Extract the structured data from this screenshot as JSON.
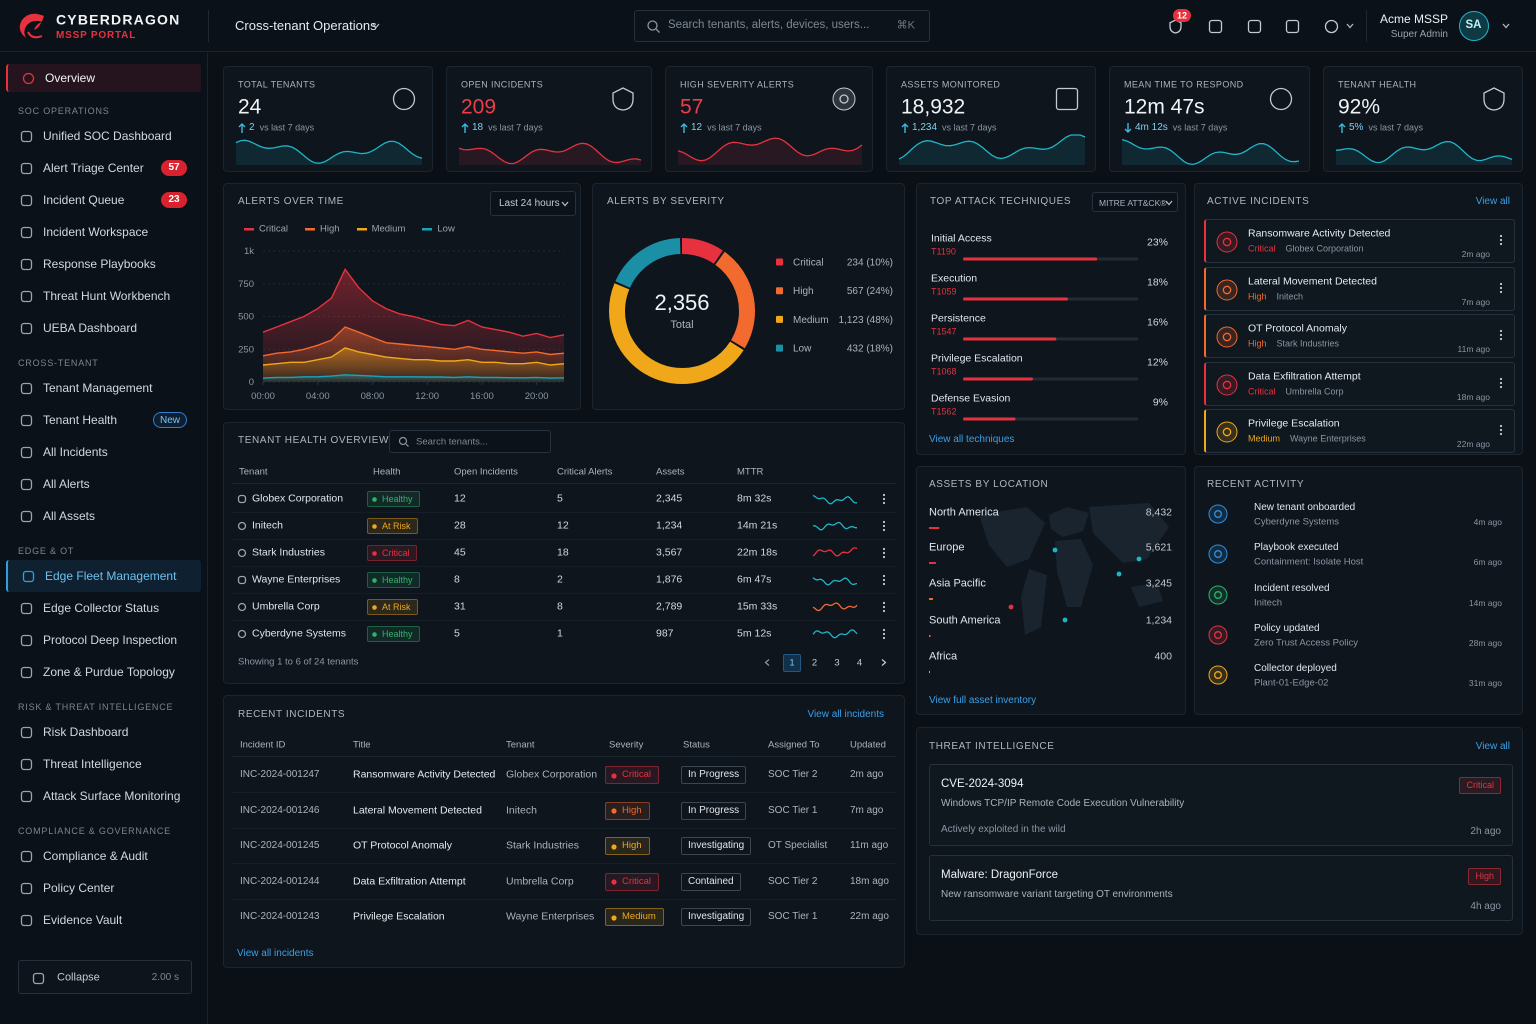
{
  "brand": {
    "name": "CYBERDRAGON",
    "tagline": "MSSP PORTAL"
  },
  "topbar": {
    "context": "Cross-tenant Operations",
    "search_placeholder": "Search tenants, alerts, devices, users...",
    "shortcut": "⌘K",
    "notifications": "12",
    "user": "Acme MSSP",
    "role": "Super Admin",
    "initials": "SA"
  },
  "sidebar": {
    "home": {
      "label": "Overview",
      "active": true,
      "color": "#e5323e"
    },
    "sections": [
      {
        "title": "SOC OPERATIONS",
        "items": [
          {
            "label": "Unified SOC Dashboard"
          },
          {
            "label": "Alert Triage Center",
            "badge": "57",
            "badge_color": "#d8232f"
          },
          {
            "label": "Incident Queue",
            "badge": "23",
            "badge_color": "#d8232f"
          },
          {
            "label": "Incident Workspace"
          },
          {
            "label": "Response Playbooks"
          },
          {
            "label": "Threat Hunt Workbench"
          },
          {
            "label": "UEBA Dashboard"
          }
        ]
      },
      {
        "title": "CROSS-TENANT",
        "items": [
          {
            "label": "Tenant Management"
          },
          {
            "label": "Tenant Health",
            "badge": "New",
            "badge_color": "#2f7fd0",
            "badge_outline": true
          },
          {
            "label": "All Incidents"
          },
          {
            "label": "All Alerts"
          },
          {
            "label": "All Assets"
          }
        ]
      },
      {
        "title": "EDGE & OT",
        "items": [
          {
            "label": "Edge Fleet Management",
            "active": true,
            "color": "#2f9fe0"
          },
          {
            "label": "Edge Collector Status"
          },
          {
            "label": "Protocol Deep Inspection"
          },
          {
            "label": "Zone & Purdue Topology"
          }
        ]
      },
      {
        "title": "RISK & THREAT INTELLIGENCE",
        "items": [
          {
            "label": "Risk Dashboard"
          },
          {
            "label": "Threat Intelligence"
          },
          {
            "label": "Attack Surface Monitoring"
          }
        ]
      },
      {
        "title": "COMPLIANCE & GOVERNANCE",
        "items": [
          {
            "label": "Compliance & Audit"
          },
          {
            "label": "Policy Center"
          },
          {
            "label": "Evidence Vault"
          }
        ]
      }
    ],
    "collapse": {
      "label": "Collapse",
      "hint": "2.00 s"
    }
  },
  "kpis": [
    {
      "label": "TOTAL TENANTS",
      "value": "24",
      "delta": "2",
      "direction": "up",
      "note": "vs last 7 days",
      "value_color": "#f1f4f7",
      "trend_color": "#1fb5c9"
    },
    {
      "label": "OPEN INCIDENTS",
      "value": "209",
      "delta": "18",
      "direction": "up",
      "note": "vs last 7 days",
      "value_color": "#ef3d48",
      "trend_color": "#e5323e"
    },
    {
      "label": "HIGH SEVERITY ALERTS",
      "value": "57",
      "delta": "12",
      "direction": "up",
      "note": "vs last 7 days",
      "value_color": "#ef3d48",
      "trend_color": "#e5323e"
    },
    {
      "label": "ASSETS MONITORED",
      "value": "18,932",
      "delta": "1,234",
      "direction": "up",
      "note": "vs last 7 days",
      "value_color": "#f1f4f7",
      "trend_color": "#1fb5c9"
    },
    {
      "label": "MEAN TIME TO RESPOND",
      "value": "12m 47s",
      "delta": "4m 12s",
      "direction": "down",
      "note": "vs last 7 days",
      "value_color": "#f1f4f7",
      "trend_color": "#1fb5c9"
    },
    {
      "label": "TENANT HEALTH",
      "value": "92%",
      "delta": "5%",
      "direction": "up",
      "note": "vs last 7 days",
      "value_color": "#f1f4f7",
      "trend_color": "#1fb5c9"
    }
  ],
  "chart_data": [
    {
      "type": "area",
      "title": "ALERTS OVER TIME",
      "range": "Last 24 hours",
      "x": [
        0,
        1,
        2,
        3,
        4,
        5,
        6,
        7,
        8,
        9,
        10,
        11,
        12,
        13,
        14,
        15,
        16,
        17,
        18,
        19,
        20,
        21,
        22
      ],
      "xlim": [
        0,
        22
      ],
      "xticks": [
        {
          "value": 0,
          "label": "00:00"
        },
        {
          "value": 4,
          "label": "04:00"
        },
        {
          "value": 8,
          "label": "08:00"
        },
        {
          "value": 12,
          "label": "12:00"
        },
        {
          "value": 16,
          "label": "16:00"
        },
        {
          "value": 20,
          "label": "20:00"
        }
      ],
      "ylim": [
        0,
        1000
      ],
      "yticks": [
        0,
        250,
        500,
        750,
        {
          "value": 1000,
          "label": "1k"
        }
      ],
      "grid": true,
      "series": [
        {
          "name": "Critical",
          "color": "#e5323e",
          "values": [
            380,
            420,
            460,
            500,
            560,
            640,
            860,
            720,
            620,
            560,
            520,
            500,
            470,
            440,
            430,
            470,
            420,
            400,
            380,
            350,
            370,
            340,
            360
          ]
        },
        {
          "name": "High",
          "color": "#f26a2e",
          "values": [
            200,
            220,
            230,
            250,
            280,
            320,
            420,
            380,
            340,
            300,
            290,
            280,
            270,
            260,
            250,
            270,
            250,
            240,
            230,
            220,
            230,
            210,
            220
          ]
        },
        {
          "name": "Medium",
          "color": "#f0a81a",
          "values": [
            130,
            140,
            150,
            150,
            170,
            190,
            260,
            230,
            210,
            190,
            180,
            170,
            170,
            160,
            160,
            170,
            150,
            150,
            140,
            140,
            150,
            130,
            140
          ]
        },
        {
          "name": "Low",
          "color": "#1aa3b8",
          "values": [
            30,
            35,
            35,
            40,
            40,
            45,
            55,
            50,
            45,
            40,
            40,
            40,
            38,
            38,
            35,
            40,
            35,
            35,
            33,
            32,
            35,
            30,
            32
          ]
        }
      ]
    },
    {
      "type": "donut",
      "title": "ALERTS BY SEVERITY",
      "total_label": "2,356",
      "total_caption": "Total",
      "categories": [
        "Critical",
        "High",
        "Medium",
        "Low"
      ],
      "values": [
        234,
        567,
        1123,
        432
      ],
      "value_labels": [
        "234 (10%)",
        "567 (24%)",
        "1,123 (48%)",
        "432 (18%)"
      ],
      "colors": [
        "#e5323e",
        "#f26a2e",
        "#f0a81a",
        "#1a8fa6"
      ]
    }
  ],
  "techniques": {
    "title": "TOP ATTACK TECHNIQUES",
    "filter": "MITRE ATT&CK®",
    "xlim": [
      0,
      30
    ],
    "link": "View all techniques",
    "items": [
      {
        "name": "Initial Access",
        "id": "T1190",
        "value": 23,
        "label": "23%"
      },
      {
        "name": "Execution",
        "id": "T1059",
        "value": 18,
        "label": "18%"
      },
      {
        "name": "Persistence",
        "id": "T1547",
        "value": 16,
        "label": "16%"
      },
      {
        "name": "Privilege Escalation",
        "id": "T1068",
        "value": 12,
        "label": "12%"
      },
      {
        "name": "Defense Evasion",
        "id": "T1562",
        "value": 9,
        "label": "9%"
      }
    ]
  },
  "active_incidents": {
    "title": "ACTIVE INCIDENTS",
    "link": "View all",
    "items": [
      {
        "title": "Ransomware Activity Detected",
        "severity": "Critical",
        "color": "#e5323e",
        "tenant": "Globex Corporation",
        "time": "2m ago"
      },
      {
        "title": "Lateral Movement Detected",
        "severity": "High",
        "color": "#f26a2e",
        "tenant": "Initech",
        "time": "7m ago"
      },
      {
        "title": "OT Protocol Anomaly",
        "severity": "High",
        "color": "#f26a2e",
        "tenant": "Stark Industries",
        "time": "11m ago"
      },
      {
        "title": "Data Exfiltration Attempt",
        "severity": "Critical",
        "color": "#e5323e",
        "tenant": "Umbrella Corp",
        "time": "18m ago"
      },
      {
        "title": "Privilege Escalation",
        "severity": "Medium",
        "color": "#f0a81a",
        "tenant": "Wayne Enterprises",
        "time": "22m ago"
      }
    ]
  },
  "tenant_health": {
    "title": "TENANT HEALTH OVERVIEW",
    "search_placeholder": "Search tenants...",
    "columns": [
      "Tenant",
      "Health",
      "Open Incidents",
      "Critical Alerts",
      "Assets",
      "MTTR"
    ],
    "rows": [
      {
        "name": "Globex Corporation",
        "health": "Healthy",
        "health_color": "#2fb36b",
        "open": "12",
        "critical": "5",
        "assets": "2,345",
        "mttr": "8m 32s",
        "trend_color": "#1fb5c9"
      },
      {
        "name": "Initech",
        "health": "At Risk",
        "health_color": "#f0a81a",
        "open": "28",
        "critical": "12",
        "assets": "1,234",
        "mttr": "14m 21s",
        "trend_color": "#1fb5c9"
      },
      {
        "name": "Stark Industries",
        "health": "Critical",
        "health_color": "#e5323e",
        "open": "45",
        "critical": "18",
        "assets": "3,567",
        "mttr": "22m 18s",
        "trend_color": "#e5323e"
      },
      {
        "name": "Wayne Enterprises",
        "health": "Healthy",
        "health_color": "#2fb36b",
        "open": "8",
        "critical": "2",
        "assets": "1,876",
        "mttr": "6m 47s",
        "trend_color": "#1fb5c9"
      },
      {
        "name": "Umbrella Corp",
        "health": "At Risk",
        "health_color": "#f0a81a",
        "open": "31",
        "critical": "8",
        "assets": "2,789",
        "mttr": "15m 33s",
        "trend_color": "#f26a2e"
      },
      {
        "name": "Cyberdyne Systems",
        "health": "Healthy",
        "health_color": "#2fb36b",
        "open": "5",
        "critical": "1",
        "assets": "987",
        "mttr": "5m 12s",
        "trend_color": "#1fb5c9"
      }
    ],
    "footer": "Showing 1 to 6 of 24 tenants",
    "pages": [
      "1",
      "2",
      "3",
      "4"
    ]
  },
  "assets_by_location": {
    "title": "ASSETS BY LOCATION",
    "xlim": [
      0,
      200000
    ],
    "link": "View full asset inventory",
    "items": [
      {
        "name": "North America",
        "value": 8432,
        "label": "8,432",
        "color": "#e5323e"
      },
      {
        "name": "Europe",
        "value": 5621,
        "label": "5,621",
        "color": "#e5323e"
      },
      {
        "name": "Asia Pacific",
        "value": 3245,
        "label": "3,245",
        "color": "#f26a2e"
      },
      {
        "name": "South America",
        "value": 1234,
        "label": "1,234",
        "color": "#f26a2e"
      },
      {
        "name": "Africa",
        "value": 400,
        "label": "400",
        "color": "#f0a81a"
      }
    ]
  },
  "recent_activity": {
    "title": "RECENT ACTIVITY",
    "items": [
      {
        "title": "New tenant onboarded",
        "sub": "Cyberdyne Systems",
        "time": "4m ago",
        "color": "#2f8fe0"
      },
      {
        "title": "Playbook executed",
        "sub": "Containment: Isolate Host",
        "time": "6m ago",
        "color": "#2f8fe0"
      },
      {
        "title": "Incident resolved",
        "sub": "Initech",
        "time": "14m ago",
        "color": "#2fb36b"
      },
      {
        "title": "Policy updated",
        "sub": "Zero Trust Access Policy",
        "time": "28m ago",
        "color": "#e5323e"
      },
      {
        "title": "Collector deployed",
        "sub": "Plant-01-Edge-02",
        "time": "31m ago",
        "color": "#f0a81a"
      }
    ]
  },
  "recent_incidents": {
    "title": "RECENT INCIDENTS",
    "link": "View all incidents",
    "columns": [
      "Incident ID",
      "Title",
      "Tenant",
      "Severity",
      "Status",
      "Assigned To",
      "Updated"
    ],
    "rows": [
      {
        "id": "INC-2024-001247",
        "title": "Ransomware Activity Detected",
        "tenant": "Globex Corporation",
        "severity": "Critical",
        "color": "#e5323e",
        "status": "In Progress",
        "assignee": "SOC Tier 2",
        "updated": "2m ago"
      },
      {
        "id": "INC-2024-001246",
        "title": "Lateral Movement Detected",
        "tenant": "Initech",
        "severity": "High",
        "color": "#f26a2e",
        "status": "In Progress",
        "assignee": "SOC Tier 1",
        "updated": "7m ago"
      },
      {
        "id": "INC-2024-001245",
        "title": "OT Protocol Anomaly",
        "tenant": "Stark Industries",
        "severity": "High",
        "color": "#f0a81a",
        "status": "Investigating",
        "assignee": "OT Specialist",
        "updated": "11m ago"
      },
      {
        "id": "INC-2024-001244",
        "title": "Data Exfiltration Attempt",
        "tenant": "Umbrella Corp",
        "severity": "Critical",
        "color": "#e5323e",
        "status": "Contained",
        "assignee": "SOC Tier 2",
        "updated": "18m ago"
      },
      {
        "id": "INC-2024-001243",
        "title": "Privilege Escalation",
        "tenant": "Wayne Enterprises",
        "severity": "Medium",
        "color": "#f0a81a",
        "status": "Investigating",
        "assignee": "SOC Tier 1",
        "updated": "22m ago"
      }
    ],
    "footer_link": "View all incidents"
  },
  "threat_intel": {
    "title": "THREAT INTELLIGENCE",
    "link": "View all",
    "items": [
      {
        "title": "CVE-2024-3094",
        "desc": "Windows TCP/IP Remote Code Execution Vulnerability",
        "note": "Actively exploited in the wild",
        "severity": "Critical",
        "color": "#e5323e",
        "time": "2h ago"
      },
      {
        "title": "Malware: DragonForce",
        "desc": "New ransomware variant targeting OT environments",
        "severity": "High",
        "color": "#e5323e",
        "time": "4h ago"
      }
    ]
  }
}
